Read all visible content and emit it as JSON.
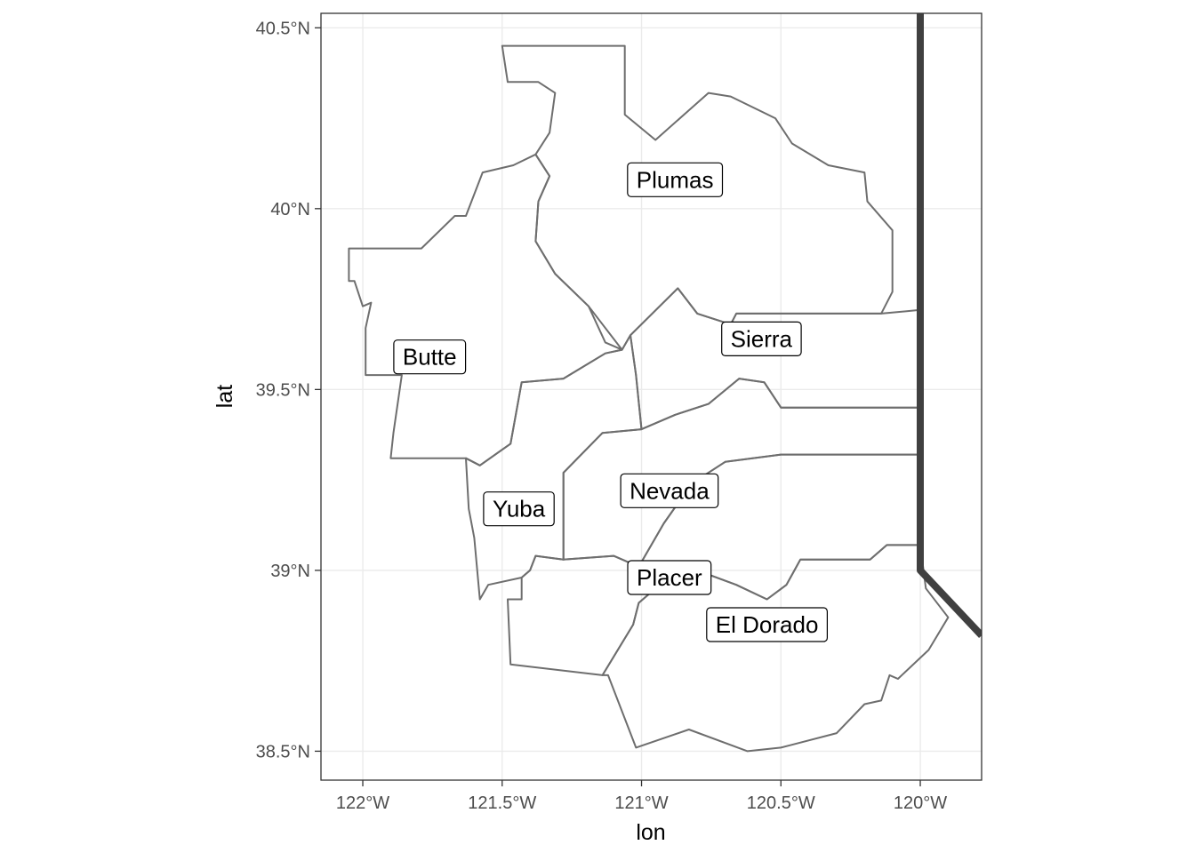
{
  "colors": {
    "background": "#ffffff",
    "grid": "#ebebeb",
    "panel_border": "#333333",
    "county_border": "#6e6e6e",
    "state_border": "#404040",
    "label_fill": "#ffffff",
    "label_border": "#000000",
    "tick_text": "#4d4d4d"
  },
  "map": {
    "xlabel": "lon",
    "ylabel": "lat",
    "xlim": [
      -122.15,
      -119.78
    ],
    "ylim": [
      38.42,
      40.54
    ],
    "x_ticks": [
      {
        "value": -122.0,
        "label": "122°W"
      },
      {
        "value": -121.5,
        "label": "121.5°W"
      },
      {
        "value": -121.0,
        "label": "121°W"
      },
      {
        "value": -120.5,
        "label": "120.5°W"
      },
      {
        "value": -120.0,
        "label": "120°W"
      }
    ],
    "y_ticks": [
      {
        "value": 38.5,
        "label": "38.5°N"
      },
      {
        "value": 39.0,
        "label": "39°N"
      },
      {
        "value": 39.5,
        "label": "39.5°N"
      },
      {
        "value": 40.0,
        "label": "40°N"
      },
      {
        "value": 40.5,
        "label": "40.5°N"
      }
    ],
    "counties": [
      {
        "name": "Plumas",
        "label": {
          "lon": -120.88,
          "lat": 40.08
        },
        "boundary": [
          [
            -121.5,
            40.45
          ],
          [
            -121.38,
            40.45
          ],
          [
            -121.06,
            40.45
          ],
          [
            -121.06,
            40.26
          ],
          [
            -120.95,
            40.19
          ],
          [
            -120.76,
            40.32
          ],
          [
            -120.68,
            40.31
          ],
          [
            -120.52,
            40.25
          ],
          [
            -120.46,
            40.18
          ],
          [
            -120.33,
            40.12
          ],
          [
            -120.2,
            40.1
          ],
          [
            -120.19,
            40.02
          ],
          [
            -120.1,
            39.94
          ],
          [
            -120.1,
            39.77
          ],
          [
            -120.14,
            39.71
          ],
          [
            -120.38,
            39.71
          ],
          [
            -120.66,
            39.71
          ],
          [
            -120.68,
            39.68
          ],
          [
            -120.8,
            39.71
          ],
          [
            -120.87,
            39.78
          ],
          [
            -121.04,
            39.65
          ],
          [
            -121.07,
            39.61
          ],
          [
            -121.13,
            39.63
          ],
          [
            -121.19,
            39.73
          ],
          [
            -121.31,
            39.82
          ],
          [
            -121.38,
            39.91
          ],
          [
            -121.37,
            40.02
          ],
          [
            -121.33,
            40.09
          ],
          [
            -121.38,
            40.15
          ],
          [
            -121.33,
            40.21
          ],
          [
            -121.31,
            40.32
          ],
          [
            -121.37,
            40.35
          ],
          [
            -121.48,
            40.35
          ],
          [
            -121.5,
            40.45
          ]
        ]
      },
      {
        "name": "Butte",
        "label": {
          "lon": -121.76,
          "lat": 39.59
        },
        "boundary": [
          [
            -121.38,
            40.15
          ],
          [
            -121.46,
            40.12
          ],
          [
            -121.57,
            40.1
          ],
          [
            -121.63,
            39.98
          ],
          [
            -121.67,
            39.98
          ],
          [
            -121.79,
            39.89
          ],
          [
            -122.05,
            39.89
          ],
          [
            -122.05,
            39.8
          ],
          [
            -122.03,
            39.8
          ],
          [
            -122.0,
            39.73
          ],
          [
            -121.97,
            39.74
          ],
          [
            -121.99,
            39.67
          ],
          [
            -121.99,
            39.54
          ],
          [
            -121.86,
            39.54
          ],
          [
            -121.89,
            39.38
          ],
          [
            -121.9,
            39.31
          ],
          [
            -121.63,
            39.31
          ],
          [
            -121.58,
            39.29
          ],
          [
            -121.47,
            39.35
          ],
          [
            -121.43,
            39.52
          ],
          [
            -121.28,
            39.53
          ],
          [
            -121.13,
            39.6
          ],
          [
            -121.07,
            39.61
          ],
          [
            -121.19,
            39.73
          ],
          [
            -121.31,
            39.82
          ],
          [
            -121.38,
            39.91
          ],
          [
            -121.37,
            40.02
          ],
          [
            -121.33,
            40.09
          ],
          [
            -121.38,
            40.15
          ]
        ]
      },
      {
        "name": "Sierra",
        "label": {
          "lon": -120.57,
          "lat": 39.64
        },
        "boundary": [
          [
            -121.04,
            39.65
          ],
          [
            -120.87,
            39.78
          ],
          [
            -120.8,
            39.71
          ],
          [
            -120.68,
            39.68
          ],
          [
            -120.66,
            39.71
          ],
          [
            -120.38,
            39.71
          ],
          [
            -120.14,
            39.71
          ],
          [
            -120.0,
            39.72
          ],
          [
            -120.0,
            39.45
          ],
          [
            -120.5,
            39.45
          ],
          [
            -120.56,
            39.52
          ],
          [
            -120.65,
            39.53
          ],
          [
            -120.76,
            39.46
          ],
          [
            -120.88,
            39.43
          ],
          [
            -121.0,
            39.39
          ],
          [
            -121.02,
            39.54
          ],
          [
            -121.04,
            39.65
          ]
        ]
      },
      {
        "name": "Yuba",
        "label": {
          "lon": -121.44,
          "lat": 39.17
        },
        "boundary": [
          [
            -121.07,
            39.61
          ],
          [
            -121.04,
            39.65
          ],
          [
            -121.02,
            39.54
          ],
          [
            -121.0,
            39.39
          ],
          [
            -121.14,
            39.38
          ],
          [
            -121.28,
            39.27
          ],
          [
            -121.28,
            39.03
          ],
          [
            -121.38,
            39.04
          ],
          [
            -121.4,
            39.0
          ],
          [
            -121.43,
            38.98
          ],
          [
            -121.55,
            38.96
          ],
          [
            -121.58,
            38.92
          ],
          [
            -121.6,
            39.09
          ],
          [
            -121.62,
            39.17
          ],
          [
            -121.63,
            39.31
          ],
          [
            -121.58,
            39.29
          ],
          [
            -121.47,
            39.35
          ],
          [
            -121.43,
            39.52
          ],
          [
            -121.28,
            39.53
          ],
          [
            -121.13,
            39.6
          ],
          [
            -121.07,
            39.61
          ]
        ]
      },
      {
        "name": "Nevada",
        "label": {
          "lon": -120.9,
          "lat": 39.22
        },
        "boundary": [
          [
            -121.28,
            39.27
          ],
          [
            -121.14,
            39.38
          ],
          [
            -121.0,
            39.39
          ],
          [
            -120.88,
            39.43
          ],
          [
            -120.76,
            39.46
          ],
          [
            -120.65,
            39.53
          ],
          [
            -120.56,
            39.52
          ],
          [
            -120.5,
            39.45
          ],
          [
            -120.0,
            39.45
          ],
          [
            -120.0,
            39.32
          ],
          [
            -120.5,
            39.32
          ],
          [
            -120.7,
            39.3
          ],
          [
            -120.82,
            39.24
          ],
          [
            -120.92,
            39.13
          ],
          [
            -121.01,
            39.01
          ],
          [
            -121.1,
            39.04
          ],
          [
            -121.28,
            39.03
          ],
          [
            -121.28,
            39.27
          ]
        ]
      },
      {
        "name": "Placer",
        "label": {
          "lon": -120.9,
          "lat": 38.98
        },
        "boundary": [
          [
            -121.28,
            39.03
          ],
          [
            -121.1,
            39.04
          ],
          [
            -121.01,
            39.01
          ],
          [
            -120.92,
            39.13
          ],
          [
            -120.82,
            39.24
          ],
          [
            -120.7,
            39.3
          ],
          [
            -120.5,
            39.32
          ],
          [
            -120.0,
            39.32
          ],
          [
            -120.0,
            39.07
          ],
          [
            -120.12,
            39.07
          ],
          [
            -120.18,
            39.03
          ],
          [
            -120.43,
            39.03
          ],
          [
            -120.48,
            38.96
          ],
          [
            -120.55,
            38.92
          ],
          [
            -120.66,
            38.96
          ],
          [
            -120.8,
            39.0
          ],
          [
            -120.89,
            38.99
          ],
          [
            -121.01,
            38.91
          ],
          [
            -121.03,
            38.85
          ],
          [
            -121.14,
            38.71
          ],
          [
            -121.47,
            38.74
          ],
          [
            -121.48,
            38.92
          ],
          [
            -121.43,
            38.92
          ],
          [
            -121.43,
            38.98
          ],
          [
            -121.4,
            39.0
          ],
          [
            -121.38,
            39.04
          ],
          [
            -121.28,
            39.03
          ]
        ]
      },
      {
        "name": "El Dorado",
        "label": {
          "lon": -120.55,
          "lat": 38.85
        },
        "boundary": [
          [
            -120.0,
            39.07
          ],
          [
            -120.12,
            39.07
          ],
          [
            -120.18,
            39.03
          ],
          [
            -120.43,
            39.03
          ],
          [
            -120.48,
            38.96
          ],
          [
            -120.55,
            38.92
          ],
          [
            -120.66,
            38.96
          ],
          [
            -120.8,
            39.0
          ],
          [
            -120.89,
            38.99
          ],
          [
            -121.01,
            38.91
          ],
          [
            -121.03,
            38.85
          ],
          [
            -121.14,
            38.71
          ],
          [
            -121.12,
            38.71
          ],
          [
            -121.02,
            38.51
          ],
          [
            -120.83,
            38.56
          ],
          [
            -120.62,
            38.5
          ],
          [
            -120.5,
            38.51
          ],
          [
            -120.3,
            38.55
          ],
          [
            -120.2,
            38.63
          ],
          [
            -120.14,
            38.64
          ],
          [
            -120.11,
            38.71
          ],
          [
            -120.08,
            38.7
          ],
          [
            -119.97,
            38.78
          ],
          [
            -119.9,
            38.87
          ],
          [
            -119.98,
            38.95
          ],
          [
            -120.0,
            39.07
          ]
        ]
      }
    ],
    "state_border": [
      [
        -120.0,
        40.54
      ],
      [
        -120.0,
        39.0
      ],
      [
        -119.78,
        38.82
      ]
    ]
  }
}
